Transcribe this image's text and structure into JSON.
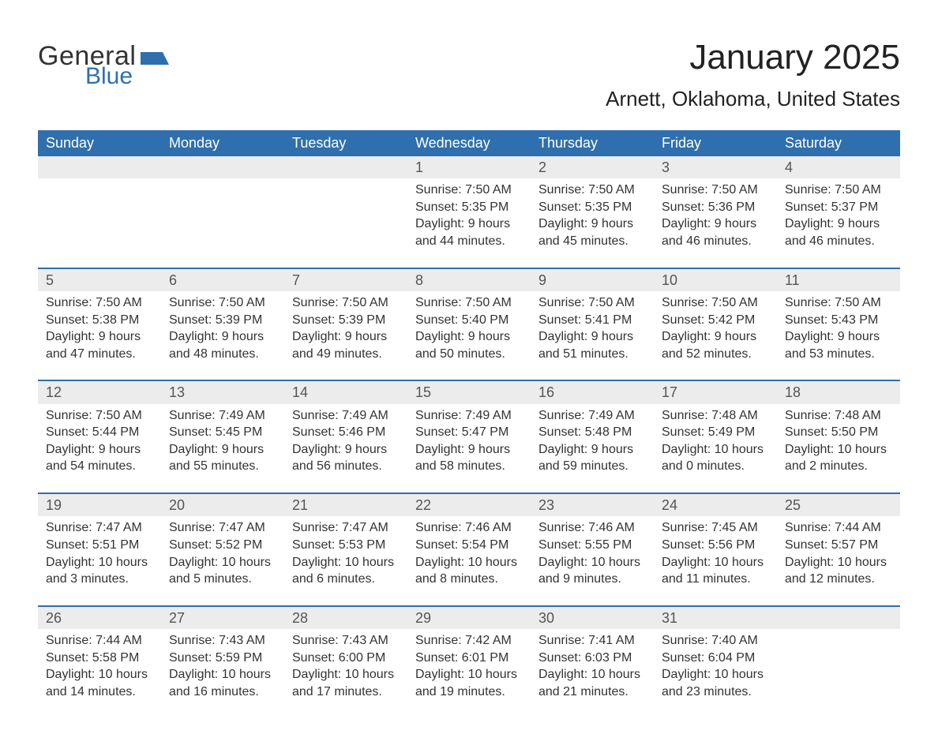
{
  "brand": {
    "general": "General",
    "blue": "Blue",
    "accent_color": "#2f6fad"
  },
  "header": {
    "month_title": "January 2025",
    "location": "Arnett, Oklahoma, United States"
  },
  "style": {
    "header_bg": "#2f6fad",
    "header_text": "#ffffff",
    "daynum_bg": "#ececec",
    "body_text": "#333333",
    "row_divider": "#2f6fad",
    "page_bg": "#ffffff",
    "month_title_fontsize": 44,
    "location_fontsize": 26,
    "dow_fontsize": 18,
    "cell_fontsize": 16
  },
  "calendar": {
    "days_of_week": [
      "Sunday",
      "Monday",
      "Tuesday",
      "Wednesday",
      "Thursday",
      "Friday",
      "Saturday"
    ],
    "leading_blanks": 3,
    "trailing_blanks": 1,
    "days": [
      {
        "n": 1,
        "sunrise": "7:50 AM",
        "sunset": "5:35 PM",
        "daylight": "9 hours and 44 minutes."
      },
      {
        "n": 2,
        "sunrise": "7:50 AM",
        "sunset": "5:35 PM",
        "daylight": "9 hours and 45 minutes."
      },
      {
        "n": 3,
        "sunrise": "7:50 AM",
        "sunset": "5:36 PM",
        "daylight": "9 hours and 46 minutes."
      },
      {
        "n": 4,
        "sunrise": "7:50 AM",
        "sunset": "5:37 PM",
        "daylight": "9 hours and 46 minutes."
      },
      {
        "n": 5,
        "sunrise": "7:50 AM",
        "sunset": "5:38 PM",
        "daylight": "9 hours and 47 minutes."
      },
      {
        "n": 6,
        "sunrise": "7:50 AM",
        "sunset": "5:39 PM",
        "daylight": "9 hours and 48 minutes."
      },
      {
        "n": 7,
        "sunrise": "7:50 AM",
        "sunset": "5:39 PM",
        "daylight": "9 hours and 49 minutes."
      },
      {
        "n": 8,
        "sunrise": "7:50 AM",
        "sunset": "5:40 PM",
        "daylight": "9 hours and 50 minutes."
      },
      {
        "n": 9,
        "sunrise": "7:50 AM",
        "sunset": "5:41 PM",
        "daylight": "9 hours and 51 minutes."
      },
      {
        "n": 10,
        "sunrise": "7:50 AM",
        "sunset": "5:42 PM",
        "daylight": "9 hours and 52 minutes."
      },
      {
        "n": 11,
        "sunrise": "7:50 AM",
        "sunset": "5:43 PM",
        "daylight": "9 hours and 53 minutes."
      },
      {
        "n": 12,
        "sunrise": "7:50 AM",
        "sunset": "5:44 PM",
        "daylight": "9 hours and 54 minutes."
      },
      {
        "n": 13,
        "sunrise": "7:49 AM",
        "sunset": "5:45 PM",
        "daylight": "9 hours and 55 minutes."
      },
      {
        "n": 14,
        "sunrise": "7:49 AM",
        "sunset": "5:46 PM",
        "daylight": "9 hours and 56 minutes."
      },
      {
        "n": 15,
        "sunrise": "7:49 AM",
        "sunset": "5:47 PM",
        "daylight": "9 hours and 58 minutes."
      },
      {
        "n": 16,
        "sunrise": "7:49 AM",
        "sunset": "5:48 PM",
        "daylight": "9 hours and 59 minutes."
      },
      {
        "n": 17,
        "sunrise": "7:48 AM",
        "sunset": "5:49 PM",
        "daylight": "10 hours and 0 minutes."
      },
      {
        "n": 18,
        "sunrise": "7:48 AM",
        "sunset": "5:50 PM",
        "daylight": "10 hours and 2 minutes."
      },
      {
        "n": 19,
        "sunrise": "7:47 AM",
        "sunset": "5:51 PM",
        "daylight": "10 hours and 3 minutes."
      },
      {
        "n": 20,
        "sunrise": "7:47 AM",
        "sunset": "5:52 PM",
        "daylight": "10 hours and 5 minutes."
      },
      {
        "n": 21,
        "sunrise": "7:47 AM",
        "sunset": "5:53 PM",
        "daylight": "10 hours and 6 minutes."
      },
      {
        "n": 22,
        "sunrise": "7:46 AM",
        "sunset": "5:54 PM",
        "daylight": "10 hours and 8 minutes."
      },
      {
        "n": 23,
        "sunrise": "7:46 AM",
        "sunset": "5:55 PM",
        "daylight": "10 hours and 9 minutes."
      },
      {
        "n": 24,
        "sunrise": "7:45 AM",
        "sunset": "5:56 PM",
        "daylight": "10 hours and 11 minutes."
      },
      {
        "n": 25,
        "sunrise": "7:44 AM",
        "sunset": "5:57 PM",
        "daylight": "10 hours and 12 minutes."
      },
      {
        "n": 26,
        "sunrise": "7:44 AM",
        "sunset": "5:58 PM",
        "daylight": "10 hours and 14 minutes."
      },
      {
        "n": 27,
        "sunrise": "7:43 AM",
        "sunset": "5:59 PM",
        "daylight": "10 hours and 16 minutes."
      },
      {
        "n": 28,
        "sunrise": "7:43 AM",
        "sunset": "6:00 PM",
        "daylight": "10 hours and 17 minutes."
      },
      {
        "n": 29,
        "sunrise": "7:42 AM",
        "sunset": "6:01 PM",
        "daylight": "10 hours and 19 minutes."
      },
      {
        "n": 30,
        "sunrise": "7:41 AM",
        "sunset": "6:03 PM",
        "daylight": "10 hours and 21 minutes."
      },
      {
        "n": 31,
        "sunrise": "7:40 AM",
        "sunset": "6:04 PM",
        "daylight": "10 hours and 23 minutes."
      }
    ],
    "labels": {
      "sunrise": "Sunrise: ",
      "sunset": "Sunset: ",
      "daylight": "Daylight: "
    }
  }
}
